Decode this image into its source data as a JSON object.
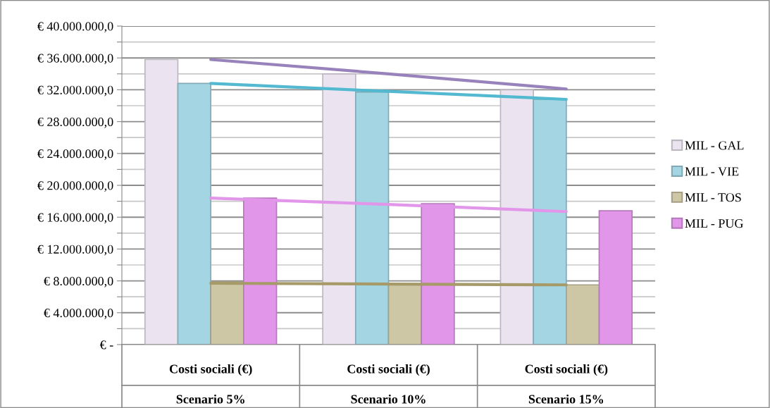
{
  "chart_data": {
    "type": "bar",
    "categories": [
      "Costi sociali (€)\nScenario 5%",
      "Costi sociali (€)\nScenario 10%",
      "Costi sociali (€)\nScenario 15%"
    ],
    "series": [
      {
        "name": "MIL - GAL",
        "color": "#ebe4f0",
        "values": [
          35800000,
          34000000,
          32000000
        ]
      },
      {
        "name": "MIL - VIE",
        "color": "#a3d5e3",
        "values": [
          32800000,
          31700000,
          30800000
        ]
      },
      {
        "name": "MIL - TOS",
        "color": "#cec7a6",
        "values": [
          7900000,
          7600000,
          7500000
        ]
      },
      {
        "name": "MIL - PUG",
        "color": "#e296ea",
        "values": [
          18400000,
          17700000,
          16800000
        ]
      },
      {
        "type": "line",
        "color": "#9882bb",
        "values": [
          35800000,
          34000000,
          32100000
        ]
      },
      {
        "type": "line",
        "color": "#52b9d0",
        "values": [
          32800000,
          31800000,
          30800000
        ]
      },
      {
        "type": "line",
        "color": "#a69a68",
        "values": [
          7700000,
          7600000,
          7500000
        ]
      },
      {
        "type": "line",
        "color": "#e296ea",
        "values": [
          18400000,
          17600000,
          16700000
        ]
      }
    ],
    "ylim": [
      0,
      40000000
    ],
    "yticks": [
      {
        "value": 0,
        "label": "€ -"
      },
      {
        "value": 2000000,
        "label": null
      },
      {
        "value": 4000000,
        "label": "€ 4.000.000,0"
      },
      {
        "value": 6000000,
        "label": null
      },
      {
        "value": 8000000,
        "label": "€ 8.000.000,0"
      },
      {
        "value": 10000000,
        "label": null
      },
      {
        "value": 12000000,
        "label": "€ 12.000.000,0"
      },
      {
        "value": 14000000,
        "label": null
      },
      {
        "value": 16000000,
        "label": "€ 16.000.000,0"
      },
      {
        "value": 18000000,
        "label": null
      },
      {
        "value": 20000000,
        "label": "€ 20.000.000,0"
      },
      {
        "value": 22000000,
        "label": null
      },
      {
        "value": 24000000,
        "label": "€ 24.000.000,0"
      },
      {
        "value": 26000000,
        "label": null
      },
      {
        "value": 28000000,
        "label": "€ 28.000.000,0"
      },
      {
        "value": 30000000,
        "label": null
      },
      {
        "value": 32000000,
        "label": "€ 32.000.000,0"
      },
      {
        "value": 34000000,
        "label": null
      },
      {
        "value": 36000000,
        "label": "€ 36.000.000,0"
      },
      {
        "value": 38000000,
        "label": null
      },
      {
        "value": 40000000,
        "label": "€ 40.000.000,0"
      }
    ],
    "grid": true,
    "legend": "right"
  }
}
